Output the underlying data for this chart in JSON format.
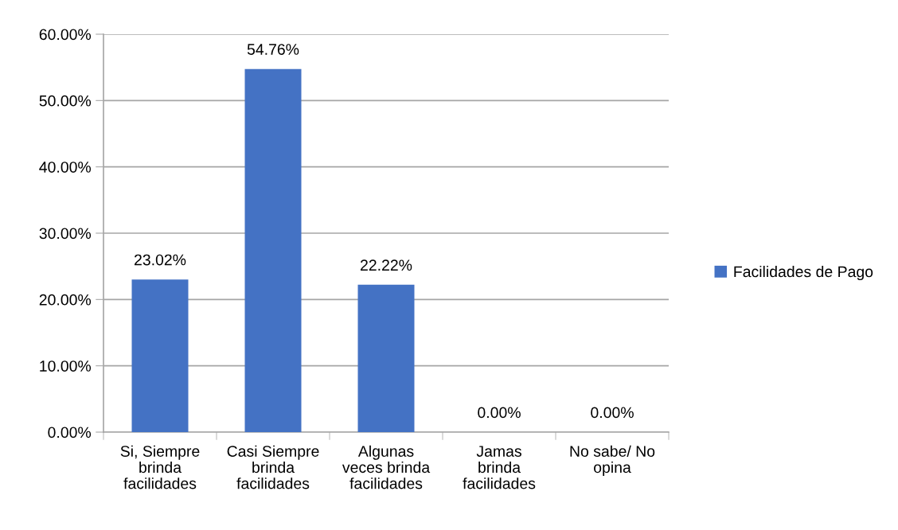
{
  "chart_data": {
    "type": "bar",
    "categories": [
      "Si, Siempre\nbrinda\nfacilidades",
      "Casi Siempre\nbrinda\nfacilidades",
      "Algunas\nveces brinda\nfacilidades",
      "Jamas\nbrinda\nfacilidades",
      "No sabe/ No\nopina"
    ],
    "series": [
      {
        "name": "Facilidades de Pago",
        "color": "#4472c4",
        "values": [
          23.02,
          54.76,
          22.22,
          0,
          0
        ],
        "value_labels": [
          "23.02%",
          "54.76%",
          "22.22%",
          "0.00%",
          "0.00%"
        ]
      }
    ],
    "ylim": [
      0,
      60
    ],
    "yticks": [
      {
        "value": 0,
        "label": "0.00%"
      },
      {
        "value": 10,
        "label": "10.00%"
      },
      {
        "value": 20,
        "label": "20.00%"
      },
      {
        "value": 30,
        "label": "30.00%"
      },
      {
        "value": 40,
        "label": "40.00%"
      },
      {
        "value": 50,
        "label": "50.00%"
      },
      {
        "value": 60,
        "label": "60.00%"
      }
    ],
    "grid": "y",
    "legend": "right"
  }
}
